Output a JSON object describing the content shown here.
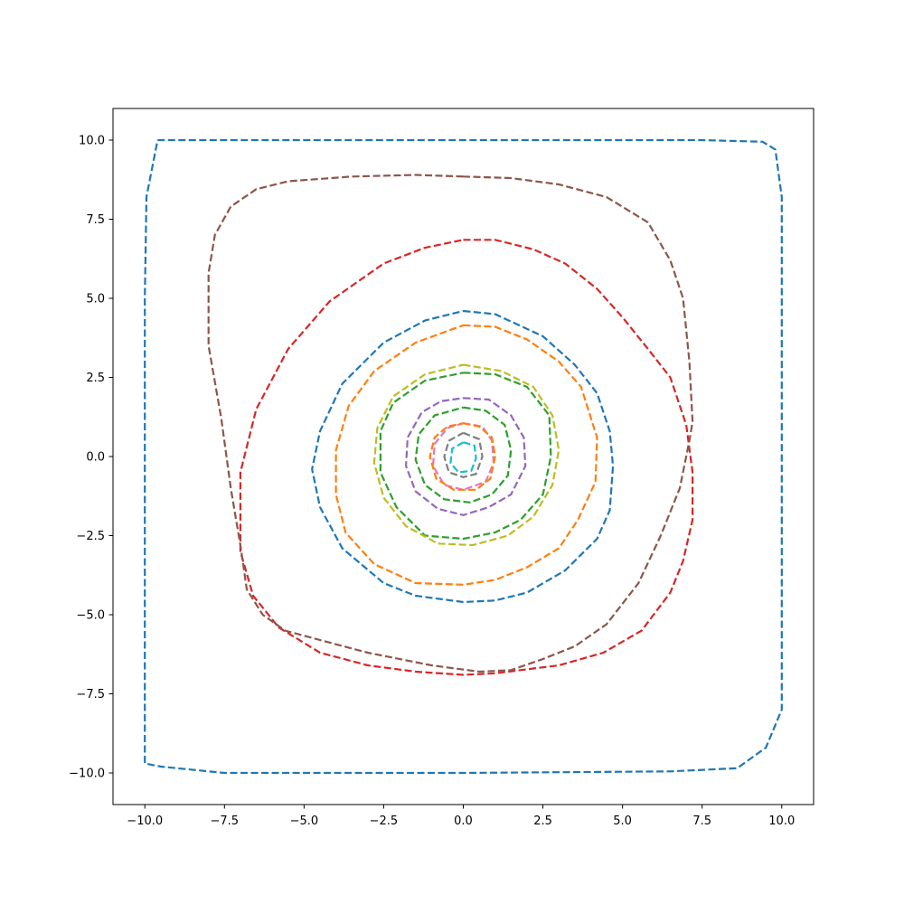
{
  "chart_data": {
    "type": "line",
    "title": "",
    "xlabel": "",
    "ylabel": "",
    "xlim": [
      -11,
      11
    ],
    "ylim": [
      -11,
      11
    ],
    "grid": false,
    "line_style": "dashed",
    "x_ticks": [
      -10.0,
      -7.5,
      -5.0,
      -2.5,
      0.0,
      2.5,
      5.0,
      7.5,
      10.0
    ],
    "x_tick_labels": [
      "−10.0",
      "−7.5",
      "−5.0",
      "−2.5",
      "0.0",
      "2.5",
      "5.0",
      "7.5",
      "10.0"
    ],
    "y_ticks": [
      10.0,
      7.5,
      5.0,
      2.5,
      0.0,
      -2.5,
      -5.0,
      -7.5,
      -10.0
    ],
    "y_tick_labels": [
      "10.0",
      "7.5",
      "5.0",
      "2.5",
      "0.0",
      "−2.5",
      "−5.0",
      "−7.5",
      "−10.0"
    ],
    "series": [
      {
        "color": "#1f77b4",
        "points": [
          [
            -9.6,
            10.0
          ],
          [
            -7.5,
            10.0
          ],
          [
            0,
            10.0
          ],
          [
            7.5,
            10.0
          ],
          [
            9.4,
            9.95
          ],
          [
            9.8,
            9.7
          ],
          [
            10.0,
            8.2
          ],
          [
            10.0,
            5
          ],
          [
            10.0,
            0
          ],
          [
            10.0,
            -5
          ],
          [
            10.0,
            -8.0
          ],
          [
            9.5,
            -9.2
          ],
          [
            8.6,
            -9.85
          ],
          [
            6.5,
            -9.95
          ],
          [
            0,
            -10.0
          ],
          [
            -7.5,
            -10.0
          ],
          [
            -9.5,
            -9.8
          ],
          [
            -10.0,
            -9.7
          ],
          [
            -10.0,
            -5
          ],
          [
            -10.0,
            0
          ],
          [
            -10.0,
            5
          ],
          [
            -9.95,
            8.2
          ],
          [
            -9.6,
            10.0
          ]
        ]
      },
      {
        "color": "#ff7f0e",
        "points": [
          [
            0,
            4.15
          ],
          [
            1.0,
            4.1
          ],
          [
            2.0,
            3.7
          ],
          [
            3.0,
            3.0
          ],
          [
            3.7,
            2.2
          ],
          [
            4.2,
            0.6
          ],
          [
            4.15,
            -0.8
          ],
          [
            3.6,
            -2.0
          ],
          [
            3.0,
            -2.9
          ],
          [
            2.0,
            -3.5
          ],
          [
            1.0,
            -3.9
          ],
          [
            0,
            -4.05
          ],
          [
            -1.5,
            -4.0
          ],
          [
            -2.8,
            -3.4
          ],
          [
            -3.7,
            -2.4
          ],
          [
            -4.0,
            -1.2
          ],
          [
            -4.0,
            0.2
          ],
          [
            -3.6,
            1.6
          ],
          [
            -2.8,
            2.7
          ],
          [
            -1.5,
            3.6
          ],
          [
            0,
            4.15
          ]
        ]
      },
      {
        "color": "#2ca02c",
        "points": [
          [
            0,
            2.65
          ],
          [
            1.0,
            2.6
          ],
          [
            2.0,
            2.2
          ],
          [
            2.7,
            1.3
          ],
          [
            2.75,
            0
          ],
          [
            2.5,
            -1.2
          ],
          [
            1.8,
            -2.0
          ],
          [
            1.0,
            -2.4
          ],
          [
            0,
            -2.6
          ],
          [
            -1.2,
            -2.5
          ],
          [
            -2.1,
            -1.6
          ],
          [
            -2.6,
            -0.5
          ],
          [
            -2.6,
            0.8
          ],
          [
            -2.2,
            1.7
          ],
          [
            -1.2,
            2.4
          ],
          [
            0,
            2.65
          ]
        ]
      },
      {
        "color": "#d62728",
        "points": [
          [
            0,
            6.85
          ],
          [
            1.0,
            6.85
          ],
          [
            2.2,
            6.55
          ],
          [
            3.2,
            6.1
          ],
          [
            4.2,
            5.3
          ],
          [
            5.0,
            4.4
          ],
          [
            5.8,
            3.4
          ],
          [
            6.5,
            2.5
          ],
          [
            7.0,
            1.0
          ],
          [
            7.2,
            -0.5
          ],
          [
            7.2,
            -2.0
          ],
          [
            6.9,
            -3.3
          ],
          [
            6.5,
            -4.3
          ],
          [
            5.6,
            -5.5
          ],
          [
            4.4,
            -6.2
          ],
          [
            3.0,
            -6.6
          ],
          [
            1.0,
            -6.85
          ],
          [
            0,
            -6.9
          ],
          [
            -1.5,
            -6.8
          ],
          [
            -3.0,
            -6.6
          ],
          [
            -4.5,
            -6.2
          ],
          [
            -5.8,
            -5.4
          ],
          [
            -6.6,
            -4.4
          ],
          [
            -7.0,
            -3.0
          ],
          [
            -7.0,
            -0.5
          ],
          [
            -6.5,
            1.5
          ],
          [
            -5.5,
            3.4
          ],
          [
            -4.2,
            4.9
          ],
          [
            -2.5,
            6.1
          ],
          [
            -1.2,
            6.6
          ],
          [
            0,
            6.85
          ]
        ]
      },
      {
        "color": "#9467bd",
        "points": [
          [
            0,
            1.85
          ],
          [
            0.8,
            1.8
          ],
          [
            1.5,
            1.3
          ],
          [
            1.9,
            0.6
          ],
          [
            1.95,
            -0.3
          ],
          [
            1.5,
            -1.2
          ],
          [
            0.8,
            -1.6
          ],
          [
            0,
            -1.85
          ],
          [
            -0.8,
            -1.65
          ],
          [
            -1.5,
            -1.1
          ],
          [
            -1.8,
            -0.3
          ],
          [
            -1.75,
            0.6
          ],
          [
            -1.3,
            1.4
          ],
          [
            -0.7,
            1.75
          ],
          [
            0,
            1.85
          ]
        ]
      },
      {
        "color": "#8c564b",
        "points": [
          [
            0,
            8.85
          ],
          [
            -1.5,
            8.9
          ],
          [
            -3.5,
            8.85
          ],
          [
            -5.5,
            8.7
          ],
          [
            -6.5,
            8.45
          ],
          [
            -7.3,
            7.9
          ],
          [
            -7.8,
            7.0
          ],
          [
            -8.0,
            5.8
          ],
          [
            -8.0,
            3.5
          ],
          [
            -7.6,
            1.2
          ],
          [
            -7.3,
            -1.0
          ],
          [
            -7.0,
            -2.8
          ],
          [
            -6.8,
            -4.2
          ],
          [
            -6.3,
            -5.0
          ],
          [
            -5.6,
            -5.5
          ],
          [
            -4.5,
            -5.8
          ],
          [
            -3.0,
            -6.2
          ],
          [
            -1.0,
            -6.6
          ],
          [
            0.5,
            -6.8
          ],
          [
            1.5,
            -6.75
          ],
          [
            2.5,
            -6.4
          ],
          [
            3.5,
            -6.0
          ],
          [
            4.5,
            -5.3
          ],
          [
            5.5,
            -4.0
          ],
          [
            6.2,
            -2.5
          ],
          [
            6.8,
            -1.0
          ],
          [
            7.1,
            0.5
          ],
          [
            7.2,
            1.1
          ],
          [
            7.1,
            3.0
          ],
          [
            6.9,
            5.0
          ],
          [
            6.5,
            6.2
          ],
          [
            5.8,
            7.4
          ],
          [
            4.5,
            8.2
          ],
          [
            3.0,
            8.6
          ],
          [
            1.5,
            8.8
          ],
          [
            0,
            8.85
          ]
        ]
      },
      {
        "color": "#e377c2",
        "points": [
          [
            0,
            1.05
          ],
          [
            0.6,
            0.95
          ],
          [
            0.9,
            0.5
          ],
          [
            0.95,
            -0.2
          ],
          [
            0.7,
            -0.8
          ],
          [
            0,
            -1.05
          ],
          [
            -0.6,
            -0.9
          ],
          [
            -0.95,
            -0.3
          ],
          [
            -0.9,
            0.4
          ],
          [
            -0.5,
            0.9
          ],
          [
            0,
            1.05
          ]
        ]
      },
      {
        "color": "#7f7f7f",
        "points": [
          [
            0,
            0.75
          ],
          [
            0.5,
            0.55
          ],
          [
            0.6,
            0
          ],
          [
            0.4,
            -0.55
          ],
          [
            0,
            -0.65
          ],
          [
            -0.45,
            -0.5
          ],
          [
            -0.6,
            0
          ],
          [
            -0.45,
            0.5
          ],
          [
            0,
            0.75
          ]
        ]
      },
      {
        "color": "#bcbd22",
        "points": [
          [
            0,
            2.9
          ],
          [
            1.2,
            2.7
          ],
          [
            2.2,
            2.2
          ],
          [
            2.8,
            1.3
          ],
          [
            3.0,
            0.2
          ],
          [
            2.8,
            -0.9
          ],
          [
            2.2,
            -1.9
          ],
          [
            1.4,
            -2.5
          ],
          [
            0.3,
            -2.8
          ],
          [
            -0.8,
            -2.75
          ],
          [
            -1.8,
            -2.2
          ],
          [
            -2.5,
            -1.3
          ],
          [
            -2.8,
            -0.2
          ],
          [
            -2.7,
            0.9
          ],
          [
            -2.2,
            1.9
          ],
          [
            -1.2,
            2.6
          ],
          [
            0,
            2.9
          ]
        ]
      },
      {
        "color": "#17becf",
        "points": [
          [
            0,
            0.45
          ],
          [
            0.35,
            0.35
          ],
          [
            0.4,
            -0.05
          ],
          [
            0.25,
            -0.45
          ],
          [
            -0.15,
            -0.5
          ],
          [
            -0.4,
            -0.2
          ],
          [
            -0.35,
            0.25
          ],
          [
            0,
            0.45
          ]
        ]
      },
      {
        "color": "#1f77b4",
        "points": [
          [
            0,
            4.6
          ],
          [
            1.0,
            4.5
          ],
          [
            2.5,
            3.8
          ],
          [
            3.5,
            2.9
          ],
          [
            4.2,
            2.0
          ],
          [
            4.6,
            0.8
          ],
          [
            4.7,
            -0.3
          ],
          [
            4.6,
            -1.7
          ],
          [
            4.2,
            -2.6
          ],
          [
            3.2,
            -3.6
          ],
          [
            2.0,
            -4.3
          ],
          [
            1.0,
            -4.55
          ],
          [
            0,
            -4.6
          ],
          [
            -1.5,
            -4.4
          ],
          [
            -2.5,
            -4.0
          ],
          [
            -3.8,
            -2.9
          ],
          [
            -4.5,
            -1.6
          ],
          [
            -4.75,
            -0.4
          ],
          [
            -4.5,
            0.8
          ],
          [
            -3.8,
            2.3
          ],
          [
            -2.5,
            3.6
          ],
          [
            -1.2,
            4.3
          ],
          [
            0,
            4.6
          ]
        ]
      },
      {
        "color": "#ff7f0e",
        "points": [
          [
            0,
            1.05
          ],
          [
            0.5,
            0.95
          ],
          [
            0.9,
            0.6
          ],
          [
            1.0,
            0
          ],
          [
            0.85,
            -0.7
          ],
          [
            0.4,
            -1.05
          ],
          [
            -0.3,
            -1.05
          ],
          [
            -0.85,
            -0.7
          ],
          [
            -1.05,
            0
          ],
          [
            -0.9,
            0.6
          ],
          [
            -0.5,
            0.95
          ],
          [
            0,
            1.05
          ]
        ]
      },
      {
        "color": "#2ca02c",
        "points": [
          [
            0,
            1.55
          ],
          [
            0.7,
            1.45
          ],
          [
            1.3,
            1.0
          ],
          [
            1.5,
            0.2
          ],
          [
            1.4,
            -0.6
          ],
          [
            0.9,
            -1.2
          ],
          [
            0.2,
            -1.45
          ],
          [
            -0.6,
            -1.35
          ],
          [
            -1.2,
            -0.9
          ],
          [
            -1.5,
            -0.1
          ],
          [
            -1.4,
            0.7
          ],
          [
            -0.9,
            1.3
          ],
          [
            0,
            1.55
          ]
        ]
      }
    ]
  }
}
